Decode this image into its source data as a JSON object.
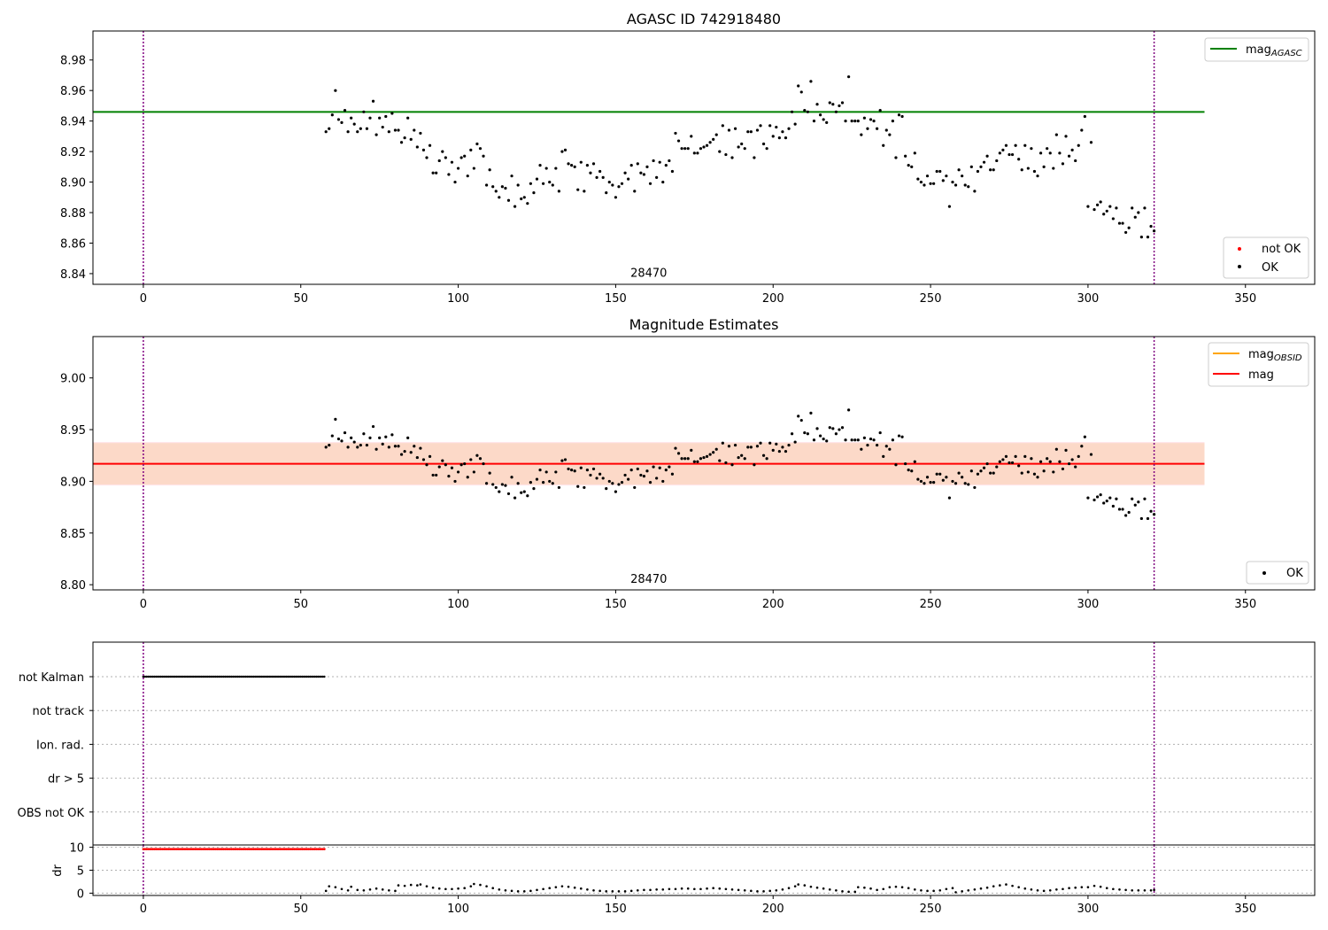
{
  "chart_data": [
    {
      "id": "agasc",
      "type": "scatter",
      "title": "AGASC ID 742918480",
      "xlim": [
        -16,
        372
      ],
      "ylim": [
        8.833,
        8.999
      ],
      "xticks": [
        0,
        50,
        100,
        150,
        200,
        250,
        300,
        350
      ],
      "yticks": [
        8.84,
        8.86,
        8.88,
        8.9,
        8.92,
        8.94,
        8.96,
        8.98
      ],
      "ytick_decimals": 2,
      "annotation": {
        "text": "28470",
        "x": 160.5,
        "y": 8.838
      },
      "vlines": [
        0,
        321
      ],
      "hline": {
        "y": 8.946,
        "x0": -16,
        "x1": 337,
        "color": "#008000"
      },
      "legend_top": [
        {
          "label": "mag",
          "sub": "AGASC",
          "color": "#008000",
          "kind": "line"
        }
      ],
      "legend_bottom": [
        {
          "label": "not OK",
          "color": "#ff0000",
          "kind": "dot"
        },
        {
          "label": "OK",
          "color": "#000000",
          "kind": "dot"
        }
      ]
    },
    {
      "id": "mag_estimates",
      "type": "scatter",
      "title": "Magnitude Estimates",
      "xlim": [
        -16,
        372
      ],
      "ylim": [
        8.795,
        9.04
      ],
      "xticks": [
        0,
        50,
        100,
        150,
        200,
        250,
        300,
        350
      ],
      "yticks": [
        8.8,
        8.85,
        8.9,
        8.95,
        9.0
      ],
      "ytick_decimals": 2,
      "annotation": {
        "text": "28470",
        "x": 160.5,
        "y": 8.802
      },
      "vlines": [
        0,
        321
      ],
      "hline": {
        "y": 8.917,
        "x0": -16,
        "x1": 337,
        "color": "#ff0000"
      },
      "band_outer": {
        "y0": 8.896,
        "y1": 8.938,
        "x0": -16,
        "x1": 337,
        "color": "#ffe4e8"
      },
      "band_inner": {
        "y0": 8.897,
        "y1": 8.937,
        "x0": -16,
        "x1": 337,
        "color": "#fcd9c8"
      },
      "legend_top": [
        {
          "label": "mag",
          "sub": "OBSID",
          "color": "#ffa500",
          "kind": "line"
        },
        {
          "label": "mag",
          "sub": "",
          "color": "#ff0000",
          "kind": "line"
        }
      ],
      "legend_bottom": [
        {
          "label": "OK",
          "color": "#000000",
          "kind": "dot"
        }
      ]
    },
    {
      "id": "flags",
      "type": "scatter",
      "xlim": [
        -16,
        372
      ],
      "ylabels": [
        "not Kalman",
        "not track",
        "Ion. rad.",
        "dr > 5",
        "OBS not OK"
      ],
      "vlines": [
        0,
        321
      ],
      "not_kalman_range": [
        0,
        57.5
      ]
    },
    {
      "id": "dr",
      "type": "scatter",
      "ylabel": "dr",
      "xlim": [
        -16,
        372
      ],
      "ylim": [
        -0.5,
        10.5
      ],
      "xticks": [
        0,
        50,
        100,
        150,
        200,
        250,
        300,
        350
      ],
      "yticks": [
        0,
        5,
        10
      ],
      "vlines": [
        0,
        321
      ],
      "clipped_range": [
        0,
        57.5
      ],
      "clipped_value": 9.6,
      "dr_points": [
        [
          58,
          0.5
        ],
        [
          59,
          1.5
        ],
        [
          61,
          1.3
        ],
        [
          63,
          0.9
        ],
        [
          65,
          0.6
        ],
        [
          66,
          1.4
        ],
        [
          68,
          0.7
        ],
        [
          70,
          0.6
        ],
        [
          72,
          0.8
        ],
        [
          74,
          1.0
        ],
        [
          76,
          0.8
        ],
        [
          78,
          0.6
        ],
        [
          80,
          0.5
        ],
        [
          81,
          1.7
        ],
        [
          83,
          1.6
        ],
        [
          85,
          1.8
        ],
        [
          87,
          1.7
        ],
        [
          88,
          1.9
        ],
        [
          90,
          1.5
        ],
        [
          92,
          1.2
        ],
        [
          94,
          1.0
        ],
        [
          96,
          0.9
        ],
        [
          98,
          0.9
        ],
        [
          100,
          1.0
        ],
        [
          102,
          1.1
        ],
        [
          104,
          1.5
        ],
        [
          105,
          2.0
        ],
        [
          107,
          1.8
        ],
        [
          109,
          1.5
        ],
        [
          111,
          1.1
        ],
        [
          113,
          0.8
        ],
        [
          115,
          0.6
        ],
        [
          117,
          0.5
        ],
        [
          119,
          0.4
        ],
        [
          121,
          0.4
        ],
        [
          123,
          0.5
        ],
        [
          125,
          0.7
        ],
        [
          127,
          0.9
        ],
        [
          129,
          1.1
        ],
        [
          131,
          1.3
        ],
        [
          133,
          1.5
        ],
        [
          135,
          1.4
        ],
        [
          137,
          1.2
        ],
        [
          139,
          1.0
        ],
        [
          141,
          0.8
        ],
        [
          143,
          0.6
        ],
        [
          145,
          0.5
        ],
        [
          147,
          0.4
        ],
        [
          149,
          0.4
        ],
        [
          151,
          0.4
        ],
        [
          153,
          0.4
        ],
        [
          155,
          0.5
        ],
        [
          157,
          0.6
        ],
        [
          159,
          0.7
        ],
        [
          161,
          0.7
        ],
        [
          163,
          0.8
        ],
        [
          165,
          0.8
        ],
        [
          167,
          0.9
        ],
        [
          169,
          0.9
        ],
        [
          171,
          1.0
        ],
        [
          173,
          1.0
        ],
        [
          175,
          0.9
        ],
        [
          177,
          0.9
        ],
        [
          179,
          1.0
        ],
        [
          181,
          1.1
        ],
        [
          183,
          1.0
        ],
        [
          185,
          0.9
        ],
        [
          187,
          0.8
        ],
        [
          189,
          0.7
        ],
        [
          191,
          0.6
        ],
        [
          193,
          0.5
        ],
        [
          195,
          0.4
        ],
        [
          197,
          0.4
        ],
        [
          199,
          0.5
        ],
        [
          201,
          0.6
        ],
        [
          203,
          0.8
        ],
        [
          205,
          1.1
        ],
        [
          207,
          1.5
        ],
        [
          208,
          1.9
        ],
        [
          210,
          1.7
        ],
        [
          212,
          1.4
        ],
        [
          214,
          1.2
        ],
        [
          216,
          1.0
        ],
        [
          218,
          0.8
        ],
        [
          220,
          0.6
        ],
        [
          222,
          0.4
        ],
        [
          224,
          0.3
        ],
        [
          226,
          0.3
        ],
        [
          227,
          1.3
        ],
        [
          229,
          1.2
        ],
        [
          231,
          1.0
        ],
        [
          233,
          0.7
        ],
        [
          235,
          0.9
        ],
        [
          237,
          1.3
        ],
        [
          239,
          1.4
        ],
        [
          241,
          1.3
        ],
        [
          243,
          1.1
        ],
        [
          245,
          0.8
        ],
        [
          247,
          0.6
        ],
        [
          249,
          0.5
        ],
        [
          251,
          0.5
        ],
        [
          253,
          0.6
        ],
        [
          255,
          0.9
        ],
        [
          257,
          1.1
        ],
        [
          258,
          0.2
        ],
        [
          260,
          0.4
        ],
        [
          262,
          0.6
        ],
        [
          264,
          0.8
        ],
        [
          266,
          1.0
        ],
        [
          268,
          1.2
        ],
        [
          270,
          1.5
        ],
        [
          272,
          1.7
        ],
        [
          274,
          1.9
        ],
        [
          276,
          1.6
        ],
        [
          278,
          1.3
        ],
        [
          280,
          1.0
        ],
        [
          282,
          0.8
        ],
        [
          284,
          0.6
        ],
        [
          286,
          0.5
        ],
        [
          288,
          0.6
        ],
        [
          290,
          0.8
        ],
        [
          292,
          0.9
        ],
        [
          294,
          1.1
        ],
        [
          296,
          1.2
        ],
        [
          298,
          1.3
        ],
        [
          300,
          1.3
        ],
        [
          302,
          1.6
        ],
        [
          304,
          1.4
        ],
        [
          306,
          1.1
        ],
        [
          308,
          0.9
        ],
        [
          310,
          0.8
        ],
        [
          312,
          0.7
        ],
        [
          314,
          0.6
        ],
        [
          316,
          0.6
        ],
        [
          318,
          0.6
        ],
        [
          320,
          0.6
        ],
        [
          321,
          0.7
        ]
      ]
    }
  ],
  "mag_series": [
    [
      58,
      8.933
    ],
    [
      59,
      8.935
    ],
    [
      60,
      8.944
    ],
    [
      61,
      8.96
    ],
    [
      62,
      8.941
    ],
    [
      63,
      8.939
    ],
    [
      64,
      8.947
    ],
    [
      65,
      8.933
    ],
    [
      66,
      8.942
    ],
    [
      67,
      8.938
    ],
    [
      68,
      8.933
    ],
    [
      69,
      8.935
    ],
    [
      70,
      8.946
    ],
    [
      71,
      8.935
    ],
    [
      72,
      8.942
    ],
    [
      73,
      8.953
    ],
    [
      74,
      8.931
    ],
    [
      75,
      8.942
    ],
    [
      76,
      8.936
    ],
    [
      77,
      8.943
    ],
    [
      78,
      8.933
    ],
    [
      79,
      8.945
    ],
    [
      80,
      8.934
    ],
    [
      81,
      8.934
    ],
    [
      82,
      8.926
    ],
    [
      83,
      8.929
    ],
    [
      84,
      8.942
    ],
    [
      85,
      8.928
    ],
    [
      86,
      8.934
    ],
    [
      87,
      8.923
    ],
    [
      88,
      8.932
    ],
    [
      89,
      8.921
    ],
    [
      90,
      8.916
    ],
    [
      91,
      8.924
    ],
    [
      92,
      8.906
    ],
    [
      93,
      8.906
    ],
    [
      94,
      8.914
    ],
    [
      95,
      8.92
    ],
    [
      96,
      8.916
    ],
    [
      97,
      8.905
    ],
    [
      98,
      8.913
    ],
    [
      99,
      8.9
    ],
    [
      100,
      8.909
    ],
    [
      101,
      8.916
    ],
    [
      102,
      8.917
    ],
    [
      103,
      8.904
    ],
    [
      104,
      8.921
    ],
    [
      105,
      8.909
    ],
    [
      106,
      8.925
    ],
    [
      107,
      8.922
    ],
    [
      108,
      8.917
    ],
    [
      109,
      8.898
    ],
    [
      110,
      8.908
    ],
    [
      111,
      8.897
    ],
    [
      112,
      8.894
    ],
    [
      113,
      8.89
    ],
    [
      114,
      8.897
    ],
    [
      115,
      8.896
    ],
    [
      116,
      8.888
    ],
    [
      117,
      8.904
    ],
    [
      118,
      8.884
    ],
    [
      119,
      8.898
    ],
    [
      120,
      8.889
    ],
    [
      121,
      8.89
    ],
    [
      122,
      8.886
    ],
    [
      123,
      8.899
    ],
    [
      124,
      8.893
    ],
    [
      125,
      8.902
    ],
    [
      126,
      8.911
    ],
    [
      127,
      8.899
    ],
    [
      128,
      8.909
    ],
    [
      129,
      8.9
    ],
    [
      130,
      8.898
    ],
    [
      131,
      8.909
    ],
    [
      132,
      8.894
    ],
    [
      133,
      8.92
    ],
    [
      134,
      8.921
    ],
    [
      135,
      8.912
    ],
    [
      136,
      8.911
    ],
    [
      137,
      8.91
    ],
    [
      138,
      8.895
    ],
    [
      139,
      8.913
    ],
    [
      140,
      8.894
    ],
    [
      141,
      8.911
    ],
    [
      142,
      8.906
    ],
    [
      143,
      8.912
    ],
    [
      144,
      8.903
    ],
    [
      145,
      8.907
    ],
    [
      146,
      8.903
    ],
    [
      147,
      8.893
    ],
    [
      148,
      8.9
    ],
    [
      149,
      8.898
    ],
    [
      150,
      8.89
    ],
    [
      151,
      8.897
    ],
    [
      152,
      8.899
    ],
    [
      153,
      8.906
    ],
    [
      154,
      8.902
    ],
    [
      155,
      8.911
    ],
    [
      156,
      8.894
    ],
    [
      157,
      8.912
    ],
    [
      158,
      8.906
    ],
    [
      159,
      8.905
    ],
    [
      160,
      8.91
    ],
    [
      161,
      8.899
    ],
    [
      162,
      8.914
    ],
    [
      163,
      8.903
    ],
    [
      164,
      8.913
    ],
    [
      165,
      8.9
    ],
    [
      166,
      8.911
    ],
    [
      167,
      8.914
    ],
    [
      168,
      8.907
    ],
    [
      169,
      8.932
    ],
    [
      170,
      8.927
    ],
    [
      171,
      8.922
    ],
    [
      172,
      8.922
    ],
    [
      173,
      8.922
    ],
    [
      174,
      8.93
    ],
    [
      175,
      8.919
    ],
    [
      176,
      8.919
    ],
    [
      177,
      8.922
    ],
    [
      178,
      8.923
    ],
    [
      179,
      8.924
    ],
    [
      180,
      8.926
    ],
    [
      181,
      8.928
    ],
    [
      182,
      8.931
    ],
    [
      183,
      8.92
    ],
    [
      184,
      8.937
    ],
    [
      185,
      8.918
    ],
    [
      186,
      8.934
    ],
    [
      187,
      8.916
    ],
    [
      188,
      8.935
    ],
    [
      189,
      8.923
    ],
    [
      190,
      8.925
    ],
    [
      191,
      8.922
    ],
    [
      192,
      8.933
    ],
    [
      193,
      8.933
    ],
    [
      194,
      8.916
    ],
    [
      195,
      8.934
    ],
    [
      196,
      8.937
    ],
    [
      197,
      8.925
    ],
    [
      198,
      8.922
    ],
    [
      199,
      8.937
    ],
    [
      200,
      8.93
    ],
    [
      201,
      8.936
    ],
    [
      202,
      8.929
    ],
    [
      203,
      8.933
    ],
    [
      204,
      8.929
    ],
    [
      205,
      8.935
    ],
    [
      206,
      8.946
    ],
    [
      207,
      8.938
    ],
    [
      208,
      8.963
    ],
    [
      209,
      8.959
    ],
    [
      210,
      8.947
    ],
    [
      211,
      8.946
    ],
    [
      212,
      8.966
    ],
    [
      213,
      8.94
    ],
    [
      214,
      8.951
    ],
    [
      215,
      8.944
    ],
    [
      216,
      8.941
    ],
    [
      217,
      8.939
    ],
    [
      218,
      8.952
    ],
    [
      219,
      8.951
    ],
    [
      220,
      8.946
    ],
    [
      221,
      8.95
    ],
    [
      222,
      8.952
    ],
    [
      223,
      8.94
    ],
    [
      224,
      8.969
    ],
    [
      225,
      8.94
    ],
    [
      226,
      8.94
    ],
    [
      227,
      8.94
    ],
    [
      228,
      8.931
    ],
    [
      229,
      8.942
    ],
    [
      230,
      8.935
    ],
    [
      231,
      8.941
    ],
    [
      232,
      8.94
    ],
    [
      233,
      8.935
    ],
    [
      234,
      8.947
    ],
    [
      235,
      8.924
    ],
    [
      236,
      8.934
    ],
    [
      237,
      8.931
    ],
    [
      238,
      8.94
    ],
    [
      239,
      8.916
    ],
    [
      240,
      8.944
    ],
    [
      241,
      8.943
    ],
    [
      242,
      8.917
    ],
    [
      243,
      8.911
    ],
    [
      244,
      8.91
    ],
    [
      245,
      8.919
    ],
    [
      246,
      8.902
    ],
    [
      247,
      8.9
    ],
    [
      248,
      8.898
    ],
    [
      249,
      8.904
    ],
    [
      250,
      8.899
    ],
    [
      251,
      8.899
    ],
    [
      252,
      8.907
    ],
    [
      253,
      8.907
    ],
    [
      254,
      8.901
    ],
    [
      255,
      8.904
    ],
    [
      256,
      8.884
    ],
    [
      257,
      8.9
    ],
    [
      258,
      8.898
    ],
    [
      259,
      8.908
    ],
    [
      260,
      8.904
    ],
    [
      261,
      8.898
    ],
    [
      262,
      8.897
    ],
    [
      263,
      8.91
    ],
    [
      264,
      8.894
    ],
    [
      265,
      8.907
    ],
    [
      266,
      8.91
    ],
    [
      267,
      8.913
    ],
    [
      268,
      8.917
    ],
    [
      269,
      8.908
    ],
    [
      270,
      8.908
    ],
    [
      271,
      8.914
    ],
    [
      272,
      8.919
    ],
    [
      273,
      8.921
    ],
    [
      274,
      8.924
    ],
    [
      275,
      8.918
    ],
    [
      276,
      8.918
    ],
    [
      277,
      8.924
    ],
    [
      278,
      8.915
    ],
    [
      279,
      8.908
    ],
    [
      280,
      8.924
    ],
    [
      281,
      8.909
    ],
    [
      282,
      8.922
    ],
    [
      283,
      8.907
    ],
    [
      284,
      8.904
    ],
    [
      285,
      8.919
    ],
    [
      286,
      8.91
    ],
    [
      287,
      8.922
    ],
    [
      288,
      8.919
    ],
    [
      289,
      8.909
    ],
    [
      290,
      8.931
    ],
    [
      291,
      8.919
    ],
    [
      292,
      8.912
    ],
    [
      293,
      8.93
    ],
    [
      294,
      8.917
    ],
    [
      295,
      8.921
    ],
    [
      296,
      8.914
    ],
    [
      297,
      8.924
    ],
    [
      298,
      8.934
    ],
    [
      299,
      8.943
    ],
    [
      300,
      8.884
    ],
    [
      301,
      8.926
    ],
    [
      302,
      8.882
    ],
    [
      303,
      8.885
    ],
    [
      304,
      8.887
    ],
    [
      305,
      8.879
    ],
    [
      306,
      8.881
    ],
    [
      307,
      8.884
    ],
    [
      308,
      8.876
    ],
    [
      309,
      8.883
    ],
    [
      310,
      8.873
    ],
    [
      311,
      8.873
    ],
    [
      312,
      8.867
    ],
    [
      313,
      8.87
    ],
    [
      314,
      8.883
    ],
    [
      315,
      8.877
    ],
    [
      316,
      8.88
    ],
    [
      317,
      8.864
    ],
    [
      318,
      8.883
    ],
    [
      319,
      8.864
    ],
    [
      320,
      8.871
    ],
    [
      321,
      8.868
    ]
  ]
}
